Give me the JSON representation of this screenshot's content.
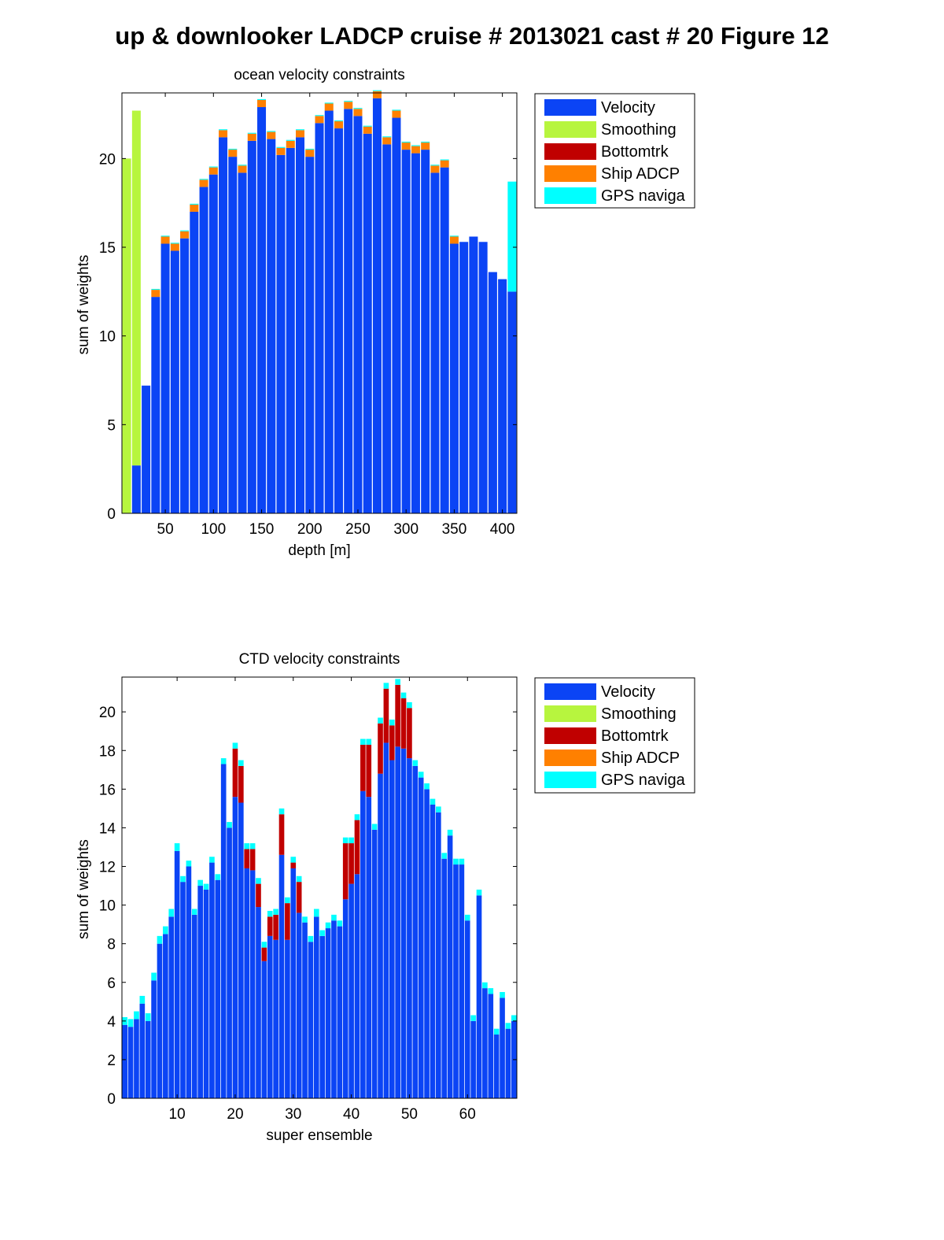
{
  "figure": {
    "title": "up & downlooker LADCP cruise # 2013021 cast # 20  Figure 12"
  },
  "legend_entries": [
    {
      "label": "Velocity",
      "color": "#0b44f5"
    },
    {
      "label": "Smoothing",
      "color": "#b7f53e"
    },
    {
      "label": "Bottomtrk",
      "color": "#c00000"
    },
    {
      "label": "Ship ADCP",
      "color": "#ff8000"
    },
    {
      "label": "GPS naviga",
      "color": "#00ffff"
    }
  ],
  "chart_data": [
    {
      "type": "bar",
      "stacked": true,
      "title": "ocean velocity constraints",
      "xlabel": "depth [m]",
      "ylabel": "sum of weights",
      "xlim": [
        5,
        415
      ],
      "ylim": [
        0,
        23.7
      ],
      "xticks": [
        50,
        100,
        150,
        200,
        250,
        300,
        350,
        400
      ],
      "yticks": [
        0,
        5,
        10,
        15,
        20
      ],
      "bar_width": 9,
      "grid": false,
      "legend": "outside-right-top",
      "x": [
        10,
        20,
        30,
        40,
        50,
        60,
        70,
        80,
        90,
        100,
        110,
        120,
        130,
        140,
        150,
        160,
        170,
        180,
        190,
        200,
        210,
        220,
        230,
        240,
        250,
        260,
        270,
        280,
        290,
        300,
        310,
        320,
        330,
        340,
        350,
        360,
        370,
        380,
        390,
        400,
        410
      ],
      "series": [
        {
          "name": "Velocity",
          "color": "#0b44f5",
          "values": [
            0,
            2.7,
            7.2,
            12.2,
            15.2,
            14.8,
            15.5,
            17,
            18.4,
            19.1,
            21.2,
            20.1,
            19.2,
            21,
            22.9,
            21.1,
            20.2,
            20.6,
            21.2,
            20.1,
            22,
            22.7,
            21.7,
            22.8,
            22.4,
            21.4,
            23.4,
            20.8,
            22.3,
            20.5,
            20.3,
            20.5,
            19.2,
            19.5,
            15.2,
            15.3,
            15.6,
            15.3,
            13.6,
            13.2,
            12.5
          ]
        },
        {
          "name": "Smoothing",
          "color": "#b7f53e",
          "values": [
            20,
            20.0,
            0,
            0,
            0,
            0,
            0,
            0,
            0,
            0,
            0,
            0,
            0,
            0,
            0,
            0,
            0,
            0,
            0,
            0,
            0,
            0,
            0,
            0,
            0,
            0,
            0,
            0,
            0,
            0,
            0,
            0,
            0,
            0,
            0,
            0,
            0,
            0,
            0,
            0,
            0
          ]
        },
        {
          "name": "Bottomtrk",
          "color": "#c00000",
          "values": [
            0,
            0,
            0,
            0,
            0,
            0,
            0,
            0,
            0,
            0,
            0,
            0,
            0,
            0,
            0,
            0,
            0,
            0,
            0,
            0,
            0,
            0,
            0,
            0,
            0,
            0,
            0,
            0,
            0,
            0,
            0,
            0,
            0,
            0,
            0,
            0,
            0,
            0,
            0,
            0,
            0
          ]
        },
        {
          "name": "Ship ADCP",
          "color": "#ff8000",
          "values": [
            0,
            0,
            0,
            0.4,
            0.4,
            0.4,
            0.4,
            0.4,
            0.4,
            0.4,
            0.4,
            0.4,
            0.4,
            0.4,
            0.4,
            0.4,
            0.4,
            0.4,
            0.4,
            0.4,
            0.4,
            0.4,
            0.4,
            0.4,
            0.4,
            0.4,
            0.4,
            0.4,
            0.4,
            0.4,
            0.4,
            0.4,
            0.4,
            0.4,
            0.4,
            0,
            0,
            0,
            0,
            0,
            0
          ]
        },
        {
          "name": "GPS naviga",
          "color": "#00ffff",
          "values": [
            0,
            0,
            0,
            0.05,
            0.05,
            0.05,
            0.05,
            0.05,
            0.05,
            0.05,
            0.05,
            0.05,
            0.05,
            0.05,
            0.05,
            0.05,
            0.05,
            0.05,
            0.05,
            0.05,
            0.05,
            0.05,
            0.05,
            0.05,
            0.05,
            0.05,
            0.05,
            0.05,
            0.05,
            0.05,
            0.05,
            0.05,
            0.05,
            0.05,
            0.05,
            0,
            0,
            0,
            0,
            0,
            6.2
          ]
        }
      ]
    },
    {
      "type": "bar",
      "stacked": true,
      "title": "CTD velocity constraints",
      "xlabel": "super ensemble",
      "ylabel": "sum of weights",
      "xlim": [
        0.5,
        68.5
      ],
      "ylim": [
        0,
        21.8
      ],
      "xticks": [
        10,
        20,
        30,
        40,
        50,
        60
      ],
      "yticks": [
        0,
        2,
        4,
        6,
        8,
        10,
        12,
        14,
        16,
        18,
        20
      ],
      "bar_width": 0.9,
      "grid": false,
      "legend": "outside-right-top",
      "x": [
        1,
        2,
        3,
        4,
        5,
        6,
        7,
        8,
        9,
        10,
        11,
        12,
        13,
        14,
        15,
        16,
        17,
        18,
        19,
        20,
        21,
        22,
        23,
        24,
        25,
        26,
        27,
        28,
        29,
        30,
        31,
        32,
        33,
        34,
        35,
        36,
        37,
        38,
        39,
        40,
        41,
        42,
        43,
        44,
        45,
        46,
        47,
        48,
        49,
        50,
        51,
        52,
        53,
        54,
        55,
        56,
        57,
        58,
        59,
        60,
        61,
        62,
        63,
        64,
        65,
        66,
        67,
        68
      ],
      "series": [
        {
          "name": "Velocity",
          "color": "#0b44f5",
          "values": [
            3.8,
            3.7,
            4.1,
            4.9,
            4.0,
            6.1,
            8.0,
            8.5,
            9.4,
            12.8,
            11.2,
            12.0,
            9.5,
            11.0,
            10.8,
            12.2,
            11.3,
            17.3,
            14.0,
            15.6,
            15.3,
            11.9,
            11.8,
            9.9,
            7.1,
            8.4,
            8.2,
            12.6,
            8.2,
            11.9,
            9.6,
            9.1,
            8.1,
            9.4,
            8.4,
            8.8,
            9.2,
            8.9,
            10.3,
            11.1,
            11.6,
            15.9,
            15.6,
            13.9,
            16.8,
            18.4,
            17.5,
            18.2,
            18.1,
            17.6,
            17.2,
            16.6,
            16.0,
            15.2,
            14.8,
            12.4,
            13.6,
            12.1,
            12.1,
            9.2,
            4.0,
            10.5,
            5.7,
            5.4,
            3.3,
            5.2,
            3.6,
            4.0
          ]
        },
        {
          "name": "Smoothing",
          "color": "#b7f53e",
          "values": [
            0,
            0,
            0,
            0,
            0,
            0,
            0,
            0,
            0,
            0,
            0,
            0,
            0,
            0,
            0,
            0,
            0,
            0,
            0,
            0,
            0,
            0,
            0,
            0,
            0,
            0,
            0,
            0,
            0,
            0,
            0,
            0,
            0,
            0,
            0,
            0,
            0,
            0,
            0,
            0,
            0,
            0,
            0,
            0,
            0,
            0,
            0,
            0,
            0,
            0,
            0,
            0,
            0,
            0,
            0,
            0,
            0,
            0,
            0,
            0,
            0,
            0,
            0,
            0,
            0,
            0,
            0,
            0
          ]
        },
        {
          "name": "Bottomtrk",
          "color": "#c00000",
          "values": [
            0,
            0,
            0,
            0,
            0,
            0,
            0,
            0,
            0,
            0,
            0,
            0,
            0,
            0,
            0,
            0,
            0,
            0,
            0,
            2.5,
            1.9,
            1.0,
            1.1,
            1.2,
            0.7,
            1.0,
            1.3,
            2.1,
            1.9,
            0.3,
            1.6,
            0,
            0,
            0,
            0,
            0,
            0,
            0,
            2.9,
            2.1,
            2.8,
            2.4,
            2.7,
            0,
            2.6,
            2.8,
            1.8,
            3.2,
            2.6,
            2.6,
            0,
            0,
            0,
            0,
            0,
            0,
            0,
            0,
            0,
            0,
            0,
            0,
            0,
            0,
            0,
            0,
            0,
            0
          ]
        },
        {
          "name": "Ship ADCP",
          "color": "#ff8000",
          "values": [
            0,
            0,
            0,
            0,
            0,
            0,
            0,
            0,
            0,
            0,
            0,
            0,
            0,
            0,
            0,
            0,
            0,
            0,
            0,
            0,
            0,
            0,
            0,
            0,
            0,
            0,
            0,
            0,
            0,
            0,
            0,
            0,
            0,
            0,
            0,
            0,
            0,
            0,
            0,
            0,
            0,
            0,
            0,
            0,
            0,
            0,
            0,
            0,
            0,
            0,
            0,
            0,
            0,
            0,
            0,
            0,
            0,
            0,
            0,
            0,
            0,
            0,
            0,
            0,
            0,
            0,
            0,
            0
          ]
        },
        {
          "name": "GPS naviga",
          "color": "#00ffff",
          "values": [
            0.4,
            0.4,
            0.4,
            0.4,
            0.4,
            0.4,
            0.4,
            0.4,
            0.4,
            0.4,
            0.3,
            0.3,
            0.3,
            0.3,
            0.3,
            0.3,
            0.3,
            0.3,
            0.3,
            0.3,
            0.3,
            0.3,
            0.3,
            0.3,
            0.3,
            0.3,
            0.3,
            0.3,
            0.3,
            0.3,
            0.3,
            0.3,
            0.3,
            0.4,
            0.3,
            0.3,
            0.3,
            0.3,
            0.3,
            0.3,
            0.3,
            0.3,
            0.3,
            0.3,
            0.3,
            0.3,
            0.3,
            0.3,
            0.3,
            0.3,
            0.3,
            0.3,
            0.3,
            0.3,
            0.3,
            0.3,
            0.3,
            0.3,
            0.3,
            0.3,
            0.3,
            0.3,
            0.3,
            0.3,
            0.3,
            0.3,
            0.3,
            0.3
          ]
        }
      ]
    }
  ]
}
